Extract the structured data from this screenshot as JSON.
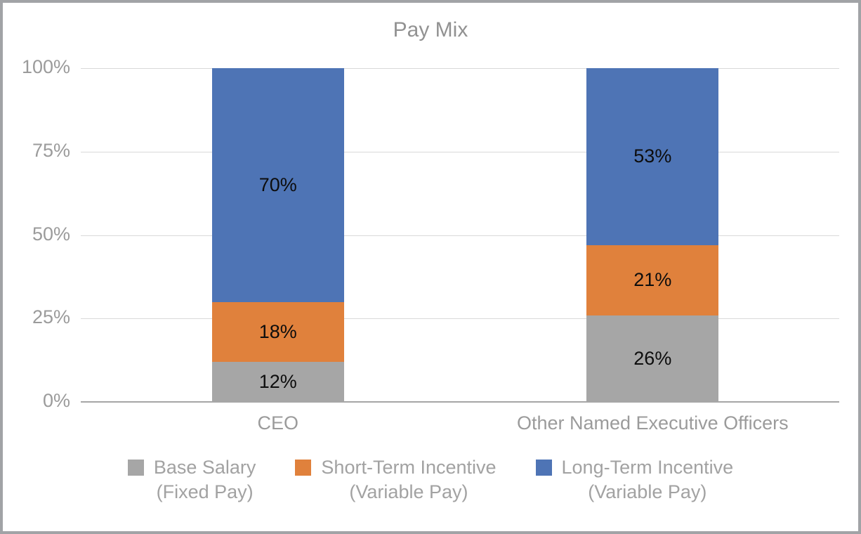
{
  "chart_data": {
    "type": "bar",
    "stacked": true,
    "title": "Pay Mix",
    "categories": [
      "CEO",
      "Other Named Executive Officers"
    ],
    "series": [
      {
        "name": "Base Salary",
        "subtitle": "(Fixed Pay)",
        "color": "#A6A6A6",
        "values": [
          12,
          26
        ]
      },
      {
        "name": "Short-Term Incentive",
        "subtitle": "(Variable Pay)",
        "color": "#E0813C",
        "values": [
          18,
          21
        ]
      },
      {
        "name": "Long-Term Incentive",
        "subtitle": "(Variable Pay)",
        "color": "#4E74B5",
        "values": [
          70,
          53
        ]
      }
    ],
    "value_suffix": "%",
    "yticks": [
      0,
      25,
      50,
      75,
      100
    ],
    "ytick_suffix": "%",
    "ylim": [
      0,
      100
    ],
    "grid": "horizontal",
    "legend_position": "bottom",
    "colors": {
      "grid": "#D9D9D9",
      "axis": "#A6A6A6",
      "title_text": "#929292",
      "axis_text": "#9B9B9B",
      "legend_text": "#A2A2A2",
      "data_label": "#0D0D0D",
      "frame_border": "#A1A3A6",
      "background": "#FFFFFF"
    }
  }
}
